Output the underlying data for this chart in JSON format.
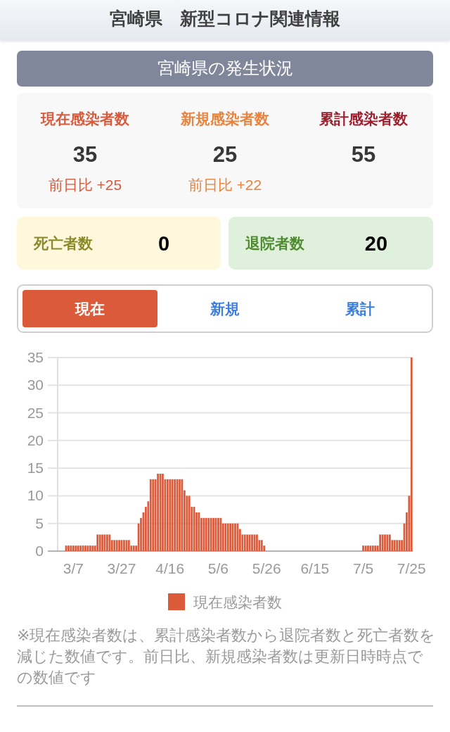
{
  "chart_data": [
    {
      "type": "other",
      "title": "宮崎県　新型コロナ関連情報",
      "subtitle": "宮崎県の発生状況",
      "annotations": [
        "現在感染者数",
        "35",
        "前日比 +25",
        "新規感染者数",
        "25",
        "前日比 +22",
        "累計感染者数",
        "55",
        "死亡者数",
        "0",
        "退院者数",
        "20",
        "現在",
        "新規",
        "累計"
      ]
    },
    {
      "type": "bar",
      "categories": [
        null,
        null,
        null,
        null,
        null,
        null,
        "3/7",
        null,
        null,
        null,
        null,
        null,
        null,
        null,
        null,
        null,
        null,
        null,
        null,
        null,
        null,
        null,
        null,
        null,
        null,
        null,
        "3/27",
        null,
        null,
        null,
        null,
        null,
        null,
        null,
        null,
        null,
        null,
        null,
        null,
        null,
        null,
        null,
        null,
        null,
        null,
        null,
        "4/16",
        null,
        null,
        null,
        null,
        null,
        null,
        null,
        null,
        null,
        null,
        null,
        null,
        null,
        null,
        null,
        null,
        null,
        null,
        null,
        "5/6",
        null,
        null,
        null,
        null,
        null,
        null,
        null,
        null,
        null,
        null,
        null,
        null,
        null,
        null,
        null,
        null,
        null,
        null,
        null,
        "5/26",
        null,
        null,
        null,
        null,
        null,
        null,
        null,
        null,
        null,
        null,
        null,
        null,
        null,
        null,
        null,
        null,
        null,
        null,
        null,
        "6/15",
        null,
        null,
        null,
        null,
        null,
        null,
        null,
        null,
        null,
        null,
        null,
        null,
        null,
        null,
        null,
        null,
        null,
        null,
        null,
        "7/5",
        null,
        null,
        null,
        null,
        null,
        null,
        null,
        null,
        null,
        null,
        null,
        null,
        null,
        null,
        null,
        null,
        null,
        null,
        null,
        "7/25"
      ],
      "series": [
        {
          "name": "現在感染者数",
          "color": "#db5a3a",
          "values": [
            0,
            0,
            0,
            1,
            1,
            1,
            1,
            1,
            1,
            1,
            1,
            1,
            1,
            1,
            1,
            1,
            3,
            3,
            3,
            3,
            3,
            3,
            2,
            2,
            2,
            2,
            2,
            2,
            2,
            2,
            1,
            1,
            1,
            5,
            6,
            7,
            8,
            9,
            13,
            13,
            13,
            14,
            14,
            14,
            13,
            13,
            13,
            13,
            13,
            13,
            13,
            13,
            11,
            10,
            10,
            8,
            8,
            7,
            7,
            6,
            6,
            6,
            6,
            6,
            6,
            6,
            6,
            6,
            5,
            5,
            5,
            5,
            5,
            5,
            5,
            4,
            3,
            3,
            3,
            3,
            3,
            3,
            3,
            2,
            2,
            1,
            0,
            0,
            0,
            0,
            0,
            0,
            0,
            0,
            0,
            0,
            0,
            0,
            0,
            0,
            0,
            0,
            0,
            0,
            0,
            0,
            0,
            0,
            0,
            0,
            0,
            0,
            0,
            0,
            0,
            0,
            0,
            0,
            0,
            0,
            0,
            0,
            0,
            0,
            0,
            0,
            1,
            1,
            1,
            1,
            1,
            1,
            1,
            3,
            3,
            3,
            3,
            3,
            2,
            2,
            2,
            2,
            2,
            5,
            7,
            10,
            35
          ]
        }
      ],
      "ylim": [
        0,
        35
      ],
      "yticks": [
        0,
        5,
        10,
        15,
        20,
        25,
        30,
        35
      ],
      "grid": "y",
      "legend": "bottom",
      "annotations": [
        "※現在感染者数は、累計感染者数から退院者数と死亡者数を減じた数値です。前日比、新規感染者数は更新日時時点での数値です"
      ]
    }
  ]
}
